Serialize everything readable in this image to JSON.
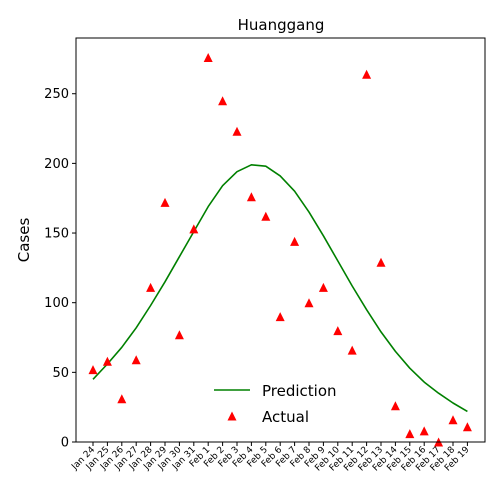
{
  "chart_data": {
    "type": "line",
    "title": "Huanggang",
    "xlabel": "",
    "ylabel": "Cases",
    "ylim": [
      0,
      290
    ],
    "yticks": [
      0,
      50,
      100,
      150,
      200,
      250
    ],
    "grid": false,
    "legend_position": "lower-center",
    "categories": [
      "Jan 24",
      "Jan 25",
      "Jan 26",
      "Jan 27",
      "Jan 28",
      "Jan 29",
      "Jan 30",
      "Jan 31",
      "Feb 1",
      "Feb 2",
      "Feb 3",
      "Feb 4",
      "Feb 5",
      "Feb 6",
      "Feb 7",
      "Feb 8",
      "Feb 9",
      "Feb 10",
      "Feb 11",
      "Feb 12",
      "Feb 13",
      "Feb 14",
      "Feb 15",
      "Feb 16",
      "Feb 17",
      "Feb 18",
      "Feb 19"
    ],
    "series": [
      {
        "name": "Prediction",
        "kind": "line",
        "color": "#008000",
        "values": [
          45,
          56,
          68,
          82,
          98,
          115,
          133,
          151,
          169,
          184,
          194,
          199,
          198,
          191,
          180,
          165,
          148,
          130,
          112,
          95,
          79,
          65,
          53,
          43,
          35,
          28,
          22
        ]
      },
      {
        "name": "Actual",
        "kind": "marker",
        "marker": "triangle",
        "color": "#ff0000",
        "values": [
          52,
          58,
          31,
          59,
          111,
          172,
          77,
          153,
          276,
          245,
          223,
          176,
          162,
          90,
          144,
          100,
          111,
          80,
          66,
          264,
          129,
          26,
          6,
          8,
          0,
          16,
          11
        ]
      }
    ]
  }
}
